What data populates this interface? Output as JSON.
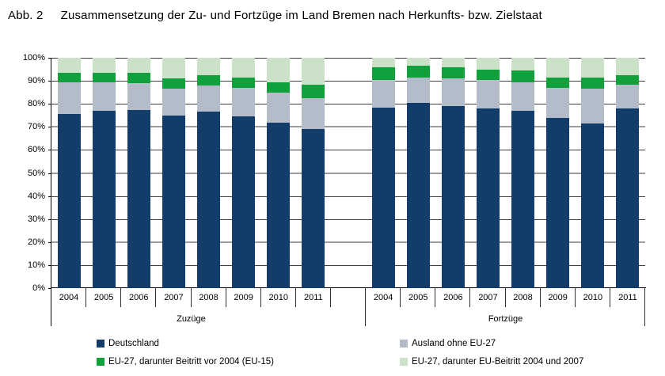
{
  "title": {
    "prefix": "Abb. 2",
    "text": "Zusammensetzung der Zu- und Fortzüge im Land Bremen nach Herkunfts- bzw. Zielstaat"
  },
  "chart_data": {
    "type": "bar",
    "stacked": true,
    "orientation": "vertical",
    "unit": "percent",
    "ylim": [
      0,
      100
    ],
    "ytick_step": 10,
    "yticklabels": [
      "0%",
      "10%",
      "20%",
      "30%",
      "40%",
      "50%",
      "60%",
      "70%",
      "80%",
      "90%",
      "100%"
    ],
    "grid": true,
    "groups": [
      {
        "label": "Zuzüge"
      },
      {
        "label": "Fortzüge"
      }
    ],
    "categories": [
      "2004",
      "2005",
      "2006",
      "2007",
      "2008",
      "2009",
      "2010",
      "2011"
    ],
    "series": [
      {
        "name": "Deutschland",
        "key": "deutschland",
        "color": "#123d6a",
        "values": {
          "Zuzüge": [
            75.5,
            77.0,
            77.5,
            75.0,
            76.5,
            74.5,
            72.0,
            69.0
          ],
          "Fortzüge": [
            78.5,
            80.5,
            79.0,
            78.0,
            77.0,
            74.0,
            71.5,
            78.0
          ]
        }
      },
      {
        "name": "Ausland ohne EU-27",
        "key": "ausland-ohne-eu27",
        "color": "#b2bdc9",
        "values": {
          "Zuzüge": [
            14.0,
            12.5,
            11.5,
            11.5,
            11.5,
            12.5,
            13.0,
            13.5
          ],
          "Fortzüge": [
            12.0,
            11.0,
            12.0,
            12.5,
            12.5,
            13.0,
            15.0,
            10.5
          ]
        }
      },
      {
        "name": "EU-27, darunter Beitritt vor 2004 (EU-15)",
        "key": "eu27-beitritt-vor-2004",
        "color": "#11a13c",
        "values": {
          "Zuzüge": [
            4.0,
            4.0,
            4.5,
            4.5,
            4.5,
            4.5,
            4.5,
            6.0
          ],
          "Fortzüge": [
            5.5,
            5.0,
            5.0,
            4.5,
            5.0,
            4.5,
            5.0,
            4.0
          ]
        }
      },
      {
        "name": "EU-27, darunter EU-Beitritt 2004 und 2007",
        "key": "eu27-beitritt-2004-2007",
        "color": "#cbe2c8",
        "values": {
          "Zuzüge": [
            6.5,
            6.5,
            6.5,
            9.0,
            7.5,
            8.5,
            10.5,
            11.5
          ],
          "Fortzüge": [
            4.0,
            3.5,
            4.0,
            5.0,
            5.5,
            8.5,
            8.5,
            7.5
          ]
        }
      }
    ],
    "legend": {
      "position": "bottom",
      "columns": [
        [
          0,
          2
        ],
        [
          1,
          3
        ]
      ]
    }
  }
}
